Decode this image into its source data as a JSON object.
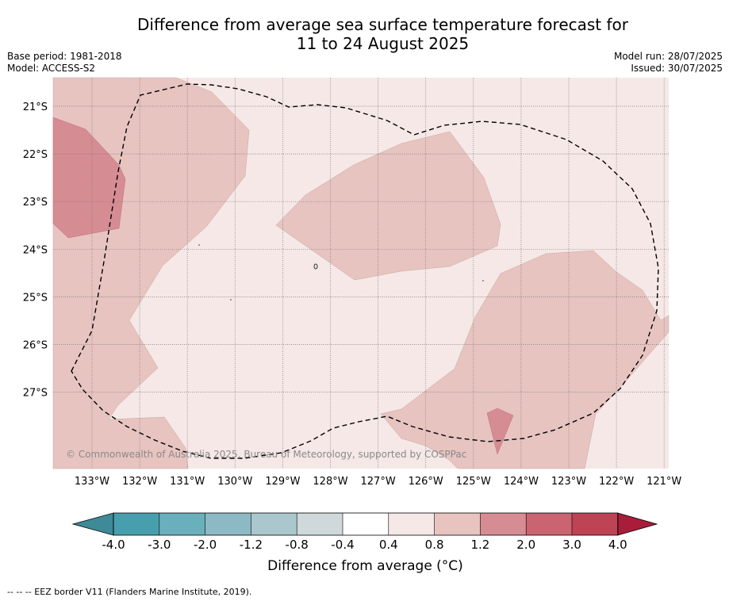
{
  "header": {
    "title_line1": "Difference from average sea surface temperature forecast for",
    "title_line2": "11 to 24 August 2025",
    "base_period": "Base period: 1981-2018",
    "model": "Model: ACCESS-S2",
    "model_run": "Model run: 28/07/2025",
    "issued": "Issued: 30/07/2025"
  },
  "map": {
    "lat_labels": [
      "21°S",
      "22°S",
      "23°S",
      "24°S",
      "25°S",
      "26°S",
      "27°S"
    ],
    "lon_labels": [
      "133°W",
      "132°W",
      "131°W",
      "130°W",
      "129°W",
      "128°W",
      "127°W",
      "126°W",
      "125°W",
      "124°W",
      "123°W",
      "122°W",
      "121°W"
    ],
    "lat_range": [
      -28.6,
      -20.4
    ],
    "lon_range": [
      -133.8,
      -120.9
    ],
    "background_color": "#f5e8e7",
    "gridlines": true,
    "copyright": "© Commonwealth of Australia 2025, Bureau of Meteorology, supported by COSPPac"
  },
  "colorbar": {
    "ticks": [
      "-4.0",
      "-3.0",
      "-2.0",
      "-1.2",
      "-0.8",
      "-0.4",
      "0.4",
      "0.8",
      "1.2",
      "2.0",
      "3.0",
      "4.0"
    ],
    "colors": [
      "#3e8a97",
      "#479fae",
      "#6aafbc",
      "#8cb9c3",
      "#a9c7cc",
      "#cfd8da",
      "#ffffff",
      "#f5e8e7",
      "#e7c4c0",
      "#d68c93",
      "#c96470",
      "#bd4355",
      "#a81d3a"
    ],
    "label": "Difference from average (°C)"
  },
  "footnote": "--  --  -- EEZ border V11 (Flanders Marine Institute, 2019)."
}
